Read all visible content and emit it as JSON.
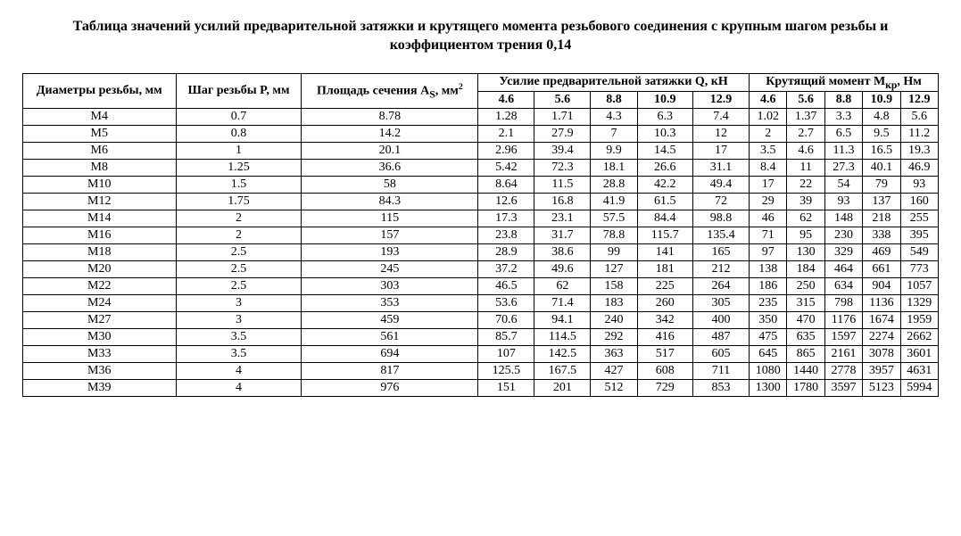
{
  "title": "Таблица значений усилий предварительной затяжки и крутящего момента резьбового соединения с крупным шагом резьбы и коэффициентом трения 0,14",
  "headers": {
    "col1": "Диаметры резьбы, мм",
    "col2": "Шаг резьбы P, мм",
    "col3_html": "Площадь сечения A<sub>S</sub>, мм<sup>2</sup>",
    "group1": "Усилие предварительной затяжки Q, кН",
    "group2_html": "Крутящий момент М<sub>кр</sub>, Нм",
    "sub": [
      "4.6",
      "5.6",
      "8.8",
      "10.9",
      "12.9",
      "4.6",
      "5.6",
      "8.8",
      "10.9",
      "12.9"
    ]
  },
  "rows": [
    [
      "M4",
      "0.7",
      "8.78",
      "1.28",
      "1.71",
      "4.3",
      "6.3",
      "7.4",
      "1.02",
      "1.37",
      "3.3",
      "4.8",
      "5.6"
    ],
    [
      "M5",
      "0.8",
      "14.2",
      "2.1",
      "27.9",
      "7",
      "10.3",
      "12",
      "2",
      "2.7",
      "6.5",
      "9.5",
      "11.2"
    ],
    [
      "M6",
      "1",
      "20.1",
      "2.96",
      "39.4",
      "9.9",
      "14.5",
      "17",
      "3.5",
      "4.6",
      "11.3",
      "16.5",
      "19.3"
    ],
    [
      "M8",
      "1.25",
      "36.6",
      "5.42",
      "72.3",
      "18.1",
      "26.6",
      "31.1",
      "8.4",
      "11",
      "27.3",
      "40.1",
      "46.9"
    ],
    [
      "M10",
      "1.5",
      "58",
      "8.64",
      "11.5",
      "28.8",
      "42.2",
      "49.4",
      "17",
      "22",
      "54",
      "79",
      "93"
    ],
    [
      "M12",
      "1.75",
      "84.3",
      "12.6",
      "16.8",
      "41.9",
      "61.5",
      "72",
      "29",
      "39",
      "93",
      "137",
      "160"
    ],
    [
      "M14",
      "2",
      "115",
      "17.3",
      "23.1",
      "57.5",
      "84.4",
      "98.8",
      "46",
      "62",
      "148",
      "218",
      "255"
    ],
    [
      "M16",
      "2",
      "157",
      "23.8",
      "31.7",
      "78.8",
      "115.7",
      "135.4",
      "71",
      "95",
      "230",
      "338",
      "395"
    ],
    [
      "M18",
      "2.5",
      "193",
      "28.9",
      "38.6",
      "99",
      "141",
      "165",
      "97",
      "130",
      "329",
      "469",
      "549"
    ],
    [
      "M20",
      "2.5",
      "245",
      "37.2",
      "49.6",
      "127",
      "181",
      "212",
      "138",
      "184",
      "464",
      "661",
      "773"
    ],
    [
      "M22",
      "2.5",
      "303",
      "46.5",
      "62",
      "158",
      "225",
      "264",
      "186",
      "250",
      "634",
      "904",
      "1057"
    ],
    [
      "M24",
      "3",
      "353",
      "53.6",
      "71.4",
      "183",
      "260",
      "305",
      "235",
      "315",
      "798",
      "1136",
      "1329"
    ],
    [
      "M27",
      "3",
      "459",
      "70.6",
      "94.1",
      "240",
      "342",
      "400",
      "350",
      "470",
      "1176",
      "1674",
      "1959"
    ],
    [
      "M30",
      "3.5",
      "561",
      "85.7",
      "114.5",
      "292",
      "416",
      "487",
      "475",
      "635",
      "1597",
      "2274",
      "2662"
    ],
    [
      "M33",
      "3.5",
      "694",
      "107",
      "142.5",
      "363",
      "517",
      "605",
      "645",
      "865",
      "2161",
      "3078",
      "3601"
    ],
    [
      "M36",
      "4",
      "817",
      "125.5",
      "167.5",
      "427",
      "608",
      "711",
      "1080",
      "1440",
      "2778",
      "3957",
      "4631"
    ],
    [
      "M39",
      "4",
      "976",
      "151",
      "201",
      "512",
      "729",
      "853",
      "1300",
      "1780",
      "3597",
      "5123",
      "5994"
    ]
  ],
  "style": {
    "font_family": "Times New Roman",
    "background_color": "#ffffff",
    "border_color": "#000000",
    "title_fontsize": 16,
    "cell_fontsize": 14
  }
}
